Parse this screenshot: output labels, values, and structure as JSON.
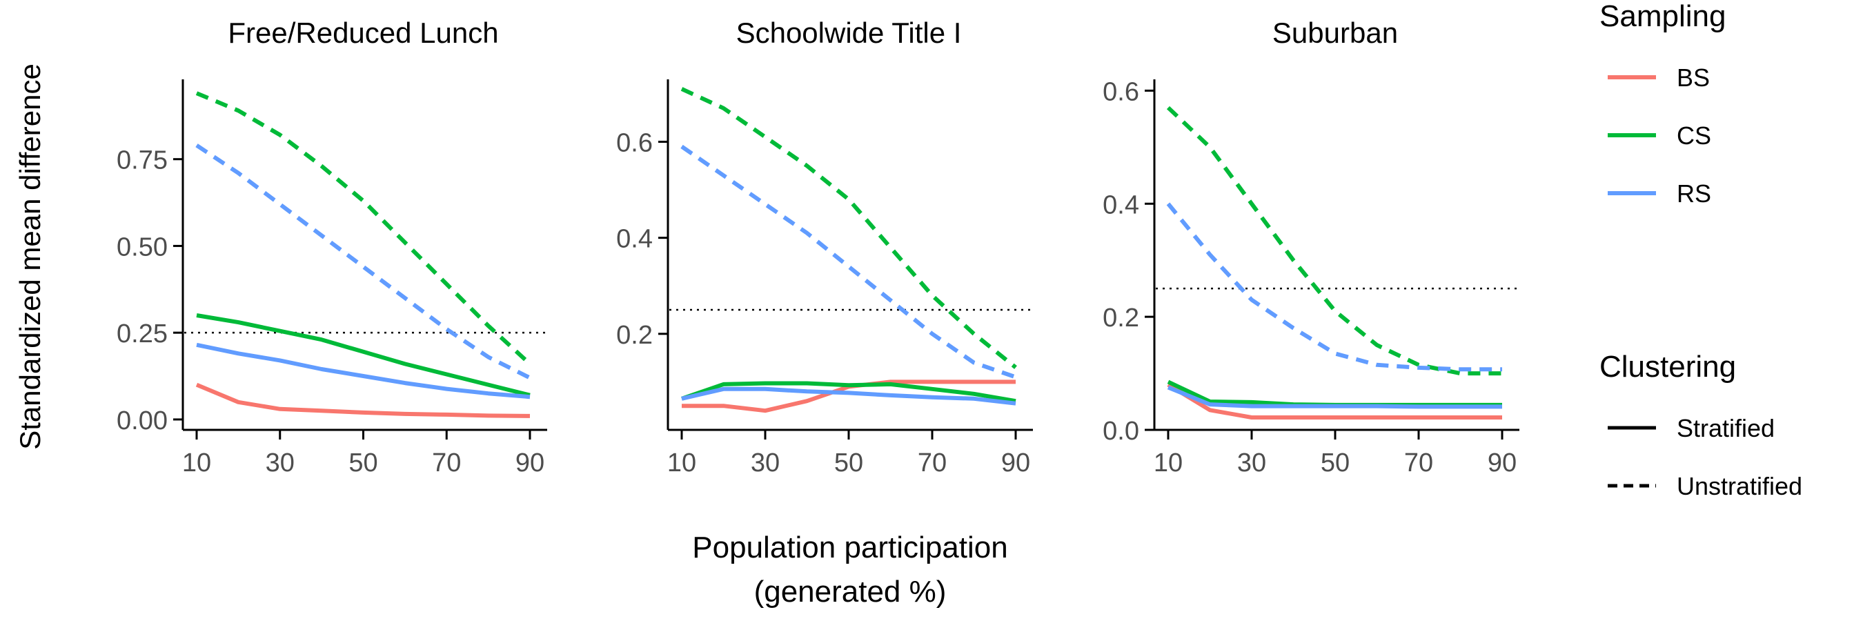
{
  "chart_data": {
    "type": "line",
    "x_ticks": [
      10,
      30,
      50,
      70,
      90
    ],
    "xlabel_line1": "Population participation",
    "xlabel_line2": "(generated %)",
    "ylabel": "Standardized mean difference",
    "threshold": 0.25,
    "x": [
      10,
      20,
      30,
      40,
      50,
      60,
      70,
      80,
      90
    ],
    "panels": [
      {
        "title": "Free/Reduced Lunch",
        "ylim": [
          -0.03,
          0.98
        ],
        "y_ticks": [
          0.0,
          0.25,
          0.5,
          0.75
        ],
        "y_tick_labels": [
          "0.00",
          "0.25",
          "0.50",
          "0.75"
        ],
        "series": [
          {
            "name": "BS",
            "clustering": "Stratified",
            "values": [
              0.1,
              0.05,
              0.03,
              0.025,
              0.02,
              0.016,
              0.014,
              0.011,
              0.01
            ]
          },
          {
            "name": "CS",
            "clustering": "Stratified",
            "values": [
              0.3,
              0.28,
              0.255,
              0.23,
              0.195,
              0.16,
              0.13,
              0.1,
              0.07
            ]
          },
          {
            "name": "RS",
            "clustering": "Stratified",
            "values": [
              0.215,
              0.19,
              0.17,
              0.145,
              0.125,
              0.105,
              0.088,
              0.075,
              0.065
            ]
          },
          {
            "name": "CS",
            "clustering": "Unstratified",
            "values": [
              0.94,
              0.89,
              0.82,
              0.73,
              0.63,
              0.51,
              0.39,
              0.27,
              0.16
            ]
          },
          {
            "name": "RS",
            "clustering": "Unstratified",
            "values": [
              0.79,
              0.71,
              0.62,
              0.53,
              0.44,
              0.35,
              0.26,
              0.18,
              0.12
            ]
          }
        ]
      },
      {
        "title": "Schoolwide Title I",
        "ylim": [
          0.0,
          0.73
        ],
        "y_ticks": [
          0.2,
          0.4,
          0.6
        ],
        "y_tick_labels": [
          "0.2",
          "0.4",
          "0.6"
        ],
        "series": [
          {
            "name": "BS",
            "clustering": "Stratified",
            "values": [
              0.05,
              0.05,
              0.04,
              0.06,
              0.09,
              0.1,
              0.1,
              0.1,
              0.1
            ]
          },
          {
            "name": "CS",
            "clustering": "Stratified",
            "values": [
              0.065,
              0.095,
              0.097,
              0.097,
              0.093,
              0.095,
              0.085,
              0.075,
              0.06
            ]
          },
          {
            "name": "RS",
            "clustering": "Stratified",
            "values": [
              0.065,
              0.085,
              0.085,
              0.08,
              0.077,
              0.072,
              0.068,
              0.065,
              0.055
            ]
          },
          {
            "name": "CS",
            "clustering": "Unstratified",
            "values": [
              0.71,
              0.67,
              0.61,
              0.55,
              0.48,
              0.38,
              0.28,
              0.2,
              0.13
            ]
          },
          {
            "name": "RS",
            "clustering": "Unstratified",
            "values": [
              0.59,
              0.53,
              0.47,
              0.41,
              0.34,
              0.27,
              0.2,
              0.14,
              0.11
            ]
          }
        ]
      },
      {
        "title": "Suburban",
        "ylim": [
          0.0,
          0.62
        ],
        "y_ticks": [
          0.0,
          0.2,
          0.4,
          0.6
        ],
        "y_tick_labels": [
          "0.0",
          "0.2",
          "0.4",
          "0.6"
        ],
        "series": [
          {
            "name": "BS",
            "clustering": "Stratified",
            "values": [
              0.08,
              0.035,
              0.022,
              0.022,
              0.022,
              0.022,
              0.022,
              0.022,
              0.022
            ]
          },
          {
            "name": "CS",
            "clustering": "Stratified",
            "values": [
              0.085,
              0.05,
              0.049,
              0.045,
              0.044,
              0.044,
              0.044,
              0.044,
              0.044
            ]
          },
          {
            "name": "RS",
            "clustering": "Stratified",
            "values": [
              0.075,
              0.045,
              0.042,
              0.042,
              0.042,
              0.042,
              0.041,
              0.041,
              0.041
            ]
          },
          {
            "name": "CS",
            "clustering": "Unstratified",
            "values": [
              0.57,
              0.5,
              0.4,
              0.3,
              0.21,
              0.15,
              0.115,
              0.1,
              0.1
            ]
          },
          {
            "name": "RS",
            "clustering": "Unstratified",
            "values": [
              0.4,
              0.31,
              0.23,
              0.18,
              0.135,
              0.115,
              0.11,
              0.107,
              0.107
            ]
          }
        ]
      }
    ],
    "legend": {
      "placement": "right",
      "sampling_title": "Sampling",
      "sampling": [
        {
          "name": "BS",
          "color": "#F8766D"
        },
        {
          "name": "CS",
          "color": "#00BA38"
        },
        {
          "name": "RS",
          "color": "#619CFF"
        }
      ],
      "clustering_title": "Clustering",
      "clustering": [
        {
          "name": "Stratified",
          "dash": "solid"
        },
        {
          "name": "Unstratified",
          "dash": "dashed"
        }
      ]
    }
  }
}
